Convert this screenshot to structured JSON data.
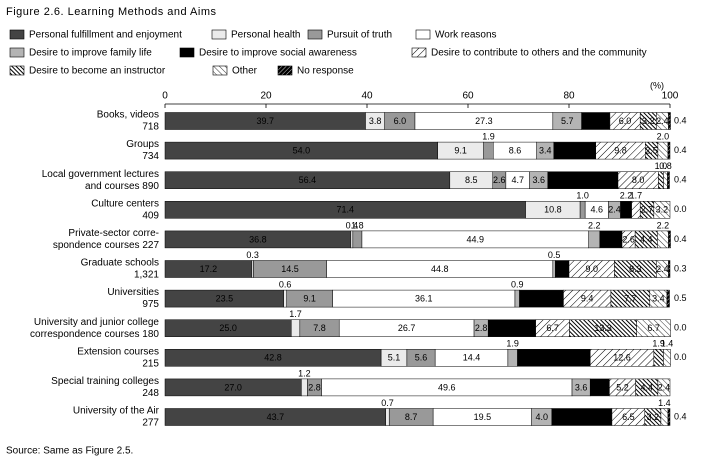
{
  "chart_data": {
    "type": "stacked_bar_horizontal",
    "title": "Figure 2.6. Learning Methods and Aims",
    "unit_label": "(%)",
    "source": "Source: Same as Figure 2.5.",
    "xlim": [
      0,
      100
    ],
    "xticks": [
      0,
      20,
      40,
      60,
      80,
      100
    ],
    "categories": [
      [
        "Books, videos",
        "718"
      ],
      [
        "Groups",
        "734"
      ],
      [
        "Local government lectures",
        "and courses  890"
      ],
      [
        "Culture centers",
        "409"
      ],
      [
        "Private-sector corre-",
        "spondence courses  227"
      ],
      [
        "Graduate schools",
        "1,321"
      ],
      [
        "Universities",
        "975"
      ],
      [
        "University and junior college",
        "correspondence courses  180"
      ],
      [
        "Extension courses",
        "215"
      ],
      [
        "Special training colleges",
        "248"
      ],
      [
        "University of the Air",
        "277"
      ]
    ],
    "series": [
      {
        "name": "Personal fulfillment and enjoyment",
        "color": "#444444",
        "values": [
          39.7,
          54.0,
          56.4,
          71.4,
          36.8,
          17.2,
          23.5,
          25.0,
          42.8,
          27.0,
          43.7
        ],
        "value_labels": [
          "39.7",
          "54.0",
          "56.4",
          "71.4",
          "36.8",
          "17.2",
          "23.5",
          "25.0",
          "42.8",
          "27.0",
          "43.7"
        ]
      },
      {
        "name": "Personal health",
        "color": "#ebebeb",
        "values": [
          3.8,
          9.1,
          8.5,
          10.8,
          0.4,
          0.3,
          0.6,
          1.7,
          5.1,
          1.2,
          0.7
        ],
        "value_labels": [
          "3.8",
          "9.1",
          "8.5",
          "10.8",
          "0.4",
          "0.3",
          "0.6",
          "1.7",
          "5.1",
          "1.2",
          "0.7"
        ]
      },
      {
        "name": "Pursuit of truth",
        "color": "#999999",
        "values": [
          6.0,
          1.9,
          2.6,
          1.0,
          1.8,
          14.5,
          9.1,
          7.8,
          5.6,
          2.8,
          8.7
        ],
        "value_labels": [
          "6.0",
          "1.9",
          "2.6",
          "1.0",
          "1.8",
          "14.5",
          "9.1",
          "7.8",
          "5.6",
          "2.8",
          "8.7"
        ]
      },
      {
        "name": "Work reasons",
        "color": "#ffffff",
        "values": [
          27.3,
          8.6,
          4.7,
          4.6,
          44.9,
          44.8,
          36.1,
          26.7,
          14.4,
          49.6,
          19.5
        ],
        "value_labels": [
          "27.3",
          "8.6",
          "4.7",
          "4.6",
          "44.9",
          "44.8",
          "36.1",
          "26.7",
          "14.4",
          "49.6",
          "19.5"
        ]
      },
      {
        "name": "Desire to improve family life",
        "color": "#b4b4b4",
        "values": [
          5.7,
          3.4,
          3.6,
          2.4,
          2.2,
          0.5,
          0.9,
          2.8,
          1.9,
          3.6,
          4.0
        ],
        "value_labels": [
          "5.7",
          "3.4",
          "3.6",
          "2.4",
          "2.2",
          "0.5",
          "0.9",
          "2.8",
          "1.9",
          "3.6",
          "4.0"
        ]
      },
      {
        "name": "Desire to improve social awareness",
        "color": "#000000",
        "values": [
          5.6,
          8.3,
          13.9,
          2.2,
          4.4,
          2.7,
          8.7,
          9.4,
          14.4,
          3.8,
          11.9
        ],
        "value_labels": [
          "5.6",
          "8.3",
          "13.9",
          "2.2",
          "4.4",
          "2.7",
          "8.7",
          "9.4",
          "14.4",
          "3.8",
          "11.9"
        ]
      },
      {
        "name": "Desire to contribute to others and the community",
        "color": "url(#pat-contrib)",
        "values": [
          6.0,
          9.8,
          8.0,
          1.7,
          2.6,
          9.0,
          9.4,
          6.7,
          12.6,
          5.2,
          6.5
        ],
        "value_labels": [
          "6.0",
          "9.8",
          "8.0",
          "1.7",
          "2.6",
          "9.0",
          "9.4",
          "6.7",
          "12.6",
          "5.2",
          "6.5"
        ]
      },
      {
        "name": "Desire to become an instructor",
        "color": "url(#pat-instr)",
        "values": [
          3.2,
          2.5,
          1.0,
          2.7,
          4.4,
          8.3,
          7.7,
          13.3,
          1.9,
          4.4,
          3.2
        ],
        "value_labels": [
          "3.2",
          "2.5",
          "1.0",
          "2.7",
          "4.4",
          "8.3",
          "7.7",
          "13.3",
          "1.9",
          "4.4",
          "3.2"
        ]
      },
      {
        "name": "Other",
        "color": "url(#pat-other)",
        "values": [
          2.4,
          2.0,
          0.8,
          3.2,
          2.2,
          2.4,
          3.4,
          6.7,
          1.4,
          2.4,
          1.4
        ],
        "value_labels": [
          "2.4",
          "2.0",
          "0.8",
          "3.2",
          "2.2",
          "2.4",
          "3.4",
          "6.7",
          "1.4",
          "2.4",
          "1.4"
        ]
      },
      {
        "name": "No response",
        "color": "url(#pat-nores)",
        "values": [
          0.4,
          0.4,
          0.4,
          0.0,
          0.4,
          0.3,
          0.5,
          0.0,
          0.0,
          0.0,
          0.4
        ],
        "value_labels": [
          "0.4",
          "0.4",
          "0.4",
          "0.0",
          "0.4",
          "0.3",
          "0.5",
          "0.0",
          "0.0",
          null,
          "0.4"
        ]
      }
    ]
  }
}
